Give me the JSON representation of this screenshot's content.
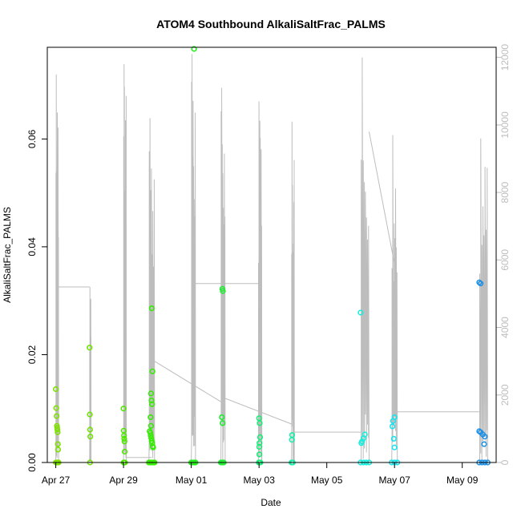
{
  "chart_data": {
    "type": "scatter",
    "title": "ATOM4 Southbound AlkaliSaltFrac_PALMS",
    "xlabel": "Date",
    "ylabel": "AlkaliSaltFrac_PALMS",
    "x_ticks": [
      "Apr 27",
      "Apr 29",
      "May 01",
      "May 03",
      "May 05",
      "May 07",
      "May 09"
    ],
    "y_ticks": [
      "0.00",
      "0.02",
      "0.04",
      "0.06"
    ],
    "y2_ticks": [
      "0",
      "2000",
      "4000",
      "6000",
      "8000",
      "10000",
      "12000"
    ],
    "xlim": [
      "2018-04-26T18:00",
      "2018-05-10T00:00"
    ],
    "ylim": [
      0,
      0.077
    ],
    "y2lim": [
      0,
      12300
    ],
    "colors": {
      "altitude_line": "#bdbdbd",
      "frame": "#000000"
    },
    "series": [
      {
        "color": "#7fe000",
        "points": [
          [
            "2018-04-27T00:00",
            0.0136
          ],
          [
            "2018-04-27T00:20",
            0.0101
          ],
          [
            "2018-04-27T00:40",
            0.0086
          ],
          [
            "2018-04-27T00:50",
            0.0068
          ],
          [
            "2018-04-27T01:00",
            0.0064
          ],
          [
            "2018-04-27T01:10",
            0.0061
          ],
          [
            "2018-04-27T01:20",
            0.0056
          ],
          [
            "2018-04-27T01:30",
            0.0034
          ],
          [
            "2018-04-27T01:40",
            0.0024
          ],
          [
            "2018-04-27T00:05",
            0.0
          ],
          [
            "2018-04-27T00:30",
            0.0
          ],
          [
            "2018-04-27T01:00",
            0.0
          ],
          [
            "2018-04-27T01:30",
            0.0
          ],
          [
            "2018-04-27T02:00",
            0.0
          ]
        ]
      },
      {
        "color": "#70e400",
        "points": [
          [
            "2018-04-28T00:00",
            0.0213
          ],
          [
            "2018-04-28T00:10",
            0.0089
          ],
          [
            "2018-04-28T00:20",
            0.0061
          ],
          [
            "2018-04-28T00:30",
            0.0048
          ],
          [
            "2018-04-28T00:15",
            0.0
          ]
        ]
      },
      {
        "color": "#4fe800",
        "points": [
          [
            "2018-04-29T00:00",
            0.01
          ],
          [
            "2018-04-29T00:10",
            0.0059
          ],
          [
            "2018-04-29T00:20",
            0.005
          ],
          [
            "2018-04-29T00:30",
            0.0044
          ],
          [
            "2018-04-29T00:40",
            0.0039
          ],
          [
            "2018-04-29T00:50",
            0.002
          ],
          [
            "2018-04-29T00:05",
            0.0
          ],
          [
            "2018-04-29T00:30",
            0.0
          ],
          [
            "2018-04-29T01:00",
            0.0
          ]
        ]
      },
      {
        "color": "#34ec00",
        "points": [
          [
            "2018-04-29T20:00",
            0.0286
          ],
          [
            "2018-04-29T20:30",
            0.0169
          ],
          [
            "2018-04-29T19:30",
            0.0128
          ],
          [
            "2018-04-29T19:50",
            0.0115
          ],
          [
            "2018-04-29T20:10",
            0.0108
          ],
          [
            "2018-04-29T18:30",
            0.0058
          ],
          [
            "2018-04-29T19:00",
            0.0055
          ],
          [
            "2018-04-29T19:20",
            0.005
          ],
          [
            "2018-04-29T19:40",
            0.0045
          ],
          [
            "2018-04-29T20:00",
            0.004
          ],
          [
            "2018-04-29T20:20",
            0.0036
          ],
          [
            "2018-04-29T20:40",
            0.003
          ],
          [
            "2018-04-29T21:00",
            0.0028
          ],
          [
            "2018-04-29T19:10",
            0.0084
          ],
          [
            "2018-04-29T19:30",
            0.0068
          ],
          [
            "2018-04-29T18:00",
            0.0
          ],
          [
            "2018-04-29T19:00",
            0.0
          ],
          [
            "2018-04-29T20:00",
            0.0
          ],
          [
            "2018-04-29T21:00",
            0.0
          ],
          [
            "2018-04-29T22:00",
            0.0
          ]
        ]
      },
      {
        "color": "#22ee1a",
        "points": [
          [
            "2018-05-01T02:00",
            0.0767
          ],
          [
            "2018-05-01T00:00",
            0.0
          ],
          [
            "2018-05-01T01:00",
            0.0
          ],
          [
            "2018-05-01T02:00",
            0.0
          ],
          [
            "2018-05-01T03:00",
            0.0
          ]
        ]
      },
      {
        "color": "#1cee30",
        "points": [
          [
            "2018-05-01T22:00",
            0.0322
          ],
          [
            "2018-05-01T22:20",
            0.0318
          ],
          [
            "2018-05-01T21:40",
            0.0084
          ],
          [
            "2018-05-01T22:10",
            0.0073
          ],
          [
            "2018-05-01T21:00",
            0.0
          ],
          [
            "2018-05-01T22:00",
            0.0
          ],
          [
            "2018-05-01T23:00",
            0.0
          ]
        ]
      },
      {
        "color": "#18ee78",
        "points": [
          [
            "2018-05-03T00:00",
            0.0082
          ],
          [
            "2018-05-03T00:30",
            0.0073
          ],
          [
            "2018-05-03T00:45",
            0.0047
          ],
          [
            "2018-05-03T00:20",
            0.0036
          ],
          [
            "2018-05-03T00:10",
            0.0029
          ],
          [
            "2018-05-03T00:15",
            0.0015
          ],
          [
            "2018-05-02T23:50",
            0.0
          ],
          [
            "2018-05-03T00:30",
            0.0
          ],
          [
            "2018-05-03T01:00",
            0.0
          ]
        ]
      },
      {
        "color": "#18eea8",
        "points": [
          [
            "2018-05-03T23:30",
            0.0051
          ],
          [
            "2018-05-03T23:20",
            0.0042
          ],
          [
            "2018-05-03T23:00",
            0.0
          ],
          [
            "2018-05-04T00:00",
            0.0
          ]
        ]
      },
      {
        "color": "#18eedd",
        "points": [
          [
            "2018-05-06T00:00",
            0.0278
          ],
          [
            "2018-05-06T03:00",
            0.0052
          ],
          [
            "2018-05-06T02:00",
            0.0045
          ],
          [
            "2018-05-06T01:00",
            0.0039
          ],
          [
            "2018-05-06T00:30",
            0.0036
          ],
          [
            "2018-05-06T00:00",
            0.0
          ],
          [
            "2018-05-06T02:00",
            0.0
          ],
          [
            "2018-05-06T04:00",
            0.0
          ],
          [
            "2018-05-06T06:00",
            0.0
          ]
        ]
      },
      {
        "color": "#18e4ee",
        "points": [
          [
            "2018-05-07T00:00",
            0.0084
          ],
          [
            "2018-05-06T23:00",
            0.0077
          ],
          [
            "2018-05-06T22:30",
            0.0067
          ],
          [
            "2018-05-06T23:30",
            0.0044
          ],
          [
            "2018-05-07T00:00",
            0.0028
          ],
          [
            "2018-05-06T22:00",
            0.0
          ],
          [
            "2018-05-07T00:00",
            0.0
          ],
          [
            "2018-05-07T02:00",
            0.0
          ]
        ]
      },
      {
        "color": "#1e90e6",
        "points": [
          [
            "2018-05-09T12:00",
            0.0334
          ],
          [
            "2018-05-09T13:00",
            0.0332
          ],
          [
            "2018-05-09T12:00",
            0.0058
          ],
          [
            "2018-05-09T13:00",
            0.0056
          ],
          [
            "2018-05-09T14:30",
            0.0052
          ],
          [
            "2018-05-09T16:00",
            0.0048
          ],
          [
            "2018-05-09T15:30",
            0.0034
          ],
          [
            "2018-05-09T12:00",
            0.0
          ],
          [
            "2018-05-09T14:00",
            0.0
          ],
          [
            "2018-05-09T16:00",
            0.0
          ],
          [
            "2018-05-09T18:00",
            0.0
          ]
        ]
      }
    ],
    "altitude_track": {
      "color": "#bdbdbd",
      "flights": [
        {
          "start": "2018-04-27T00:00",
          "end": "2018-04-27T02:00",
          "peak": 11500
        },
        {
          "start": "2018-04-28T00:00",
          "end": "2018-04-28T01:00",
          "peak": 5200
        },
        {
          "start": "2018-04-29T00:00",
          "end": "2018-04-29T02:00",
          "peak": 11800
        },
        {
          "start": "2018-04-29T18:00",
          "end": "2018-04-29T22:00",
          "peak": 10200
        },
        {
          "start": "2018-05-01T00:00",
          "end": "2018-05-01T03:00",
          "peak": 12100
        },
        {
          "start": "2018-05-01T21:00",
          "end": "2018-05-02T00:00",
          "peak": 11100
        },
        {
          "start": "2018-05-02T23:30",
          "end": "2018-05-03T02:00",
          "peak": 10700
        },
        {
          "start": "2018-05-03T23:00",
          "end": "2018-05-04T01:00",
          "peak": 10100
        },
        {
          "start": "2018-05-06T00:00",
          "end": "2018-05-06T06:00",
          "peak": 12000
        },
        {
          "start": "2018-05-06T22:00",
          "end": "2018-05-07T02:00",
          "peak": 9700
        },
        {
          "start": "2018-05-09T12:00",
          "end": "2018-05-09T18:00",
          "peak": 9600
        }
      ],
      "transits": [
        {
          "from": "2018-04-27T00:00",
          "to": "2018-04-28T00:00",
          "alt": 5200
        },
        {
          "from": "2018-04-27T02:00",
          "to": "2018-04-29T18:00",
          "alt": 0
        },
        {
          "from": "2018-04-29T02:00",
          "to": "2018-04-29T20:00",
          "alt": 150
        },
        {
          "from": "2018-04-29T22:00",
          "to": "2018-05-01T21:00",
          "alt": 3000
        },
        {
          "from": "2018-05-01T03:00",
          "to": "2018-05-02T23:30",
          "alt": 5300
        },
        {
          "from": "2018-05-02T00:00",
          "to": "2018-05-03T23:00",
          "alt": 1900
        },
        {
          "from": "2018-05-04T01:00",
          "to": "2018-05-06T00:00",
          "alt": 900
        },
        {
          "from": "2018-05-06T06:00",
          "to": "2018-05-07T00:00",
          "alt": 9800
        },
        {
          "from": "2018-05-07T02:00",
          "to": "2018-05-09T12:00",
          "alt": 1500
        }
      ]
    },
    "grid": false,
    "legend": "none"
  }
}
